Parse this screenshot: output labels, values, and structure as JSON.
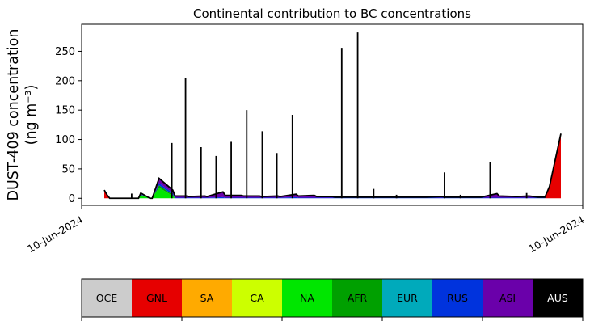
{
  "chart_data": {
    "type": "area",
    "title": "Continental contribution to BC concentrations",
    "ylabel_line1": "DUST-409 concentration",
    "ylabel_line2": "(ng m⁻³)",
    "xlabel": "",
    "ylim": [
      -12,
      296
    ],
    "yticks": [
      0,
      50,
      100,
      150,
      200,
      250
    ],
    "xticks": [
      "10-Jun-2024",
      "10-Jun-2024"
    ],
    "x": [
      0.0,
      0.006,
      0.012,
      0.05,
      0.075,
      0.08,
      0.1,
      0.105,
      0.12,
      0.15,
      0.155,
      0.18,
      0.185,
      0.22,
      0.225,
      0.26,
      0.265,
      0.3,
      0.305,
      0.34,
      0.345,
      0.38,
      0.385,
      0.42,
      0.425,
      0.46,
      0.465,
      0.5,
      0.505,
      0.54,
      0.545,
      0.58,
      0.585,
      0.62,
      0.625,
      0.66,
      0.665,
      0.7,
      0.705,
      0.74,
      0.745,
      0.78,
      0.785,
      0.82,
      0.825,
      0.86,
      0.865,
      0.9,
      0.905,
      0.93,
      0.95,
      0.965,
      0.975,
      1.0
    ],
    "series": [
      {
        "name": "OCE",
        "color": "#cccccc",
        "values": [
          0,
          0,
          0,
          0,
          0,
          0,
          0,
          0,
          0,
          0,
          0,
          0,
          0,
          0,
          0,
          0,
          0,
          0,
          0,
          0,
          0,
          0,
          0,
          0,
          0,
          0,
          0,
          0,
          0,
          0,
          0,
          0,
          0,
          0,
          0,
          0,
          0,
          0,
          0,
          0,
          0,
          0,
          0,
          0,
          0,
          0,
          0,
          0,
          0,
          0,
          0,
          0,
          0,
          0
        ]
      },
      {
        "name": "GNL",
        "color": "#e60000",
        "values": [
          14,
          6,
          0,
          0,
          0,
          0,
          0,
          0,
          0,
          0,
          0,
          0,
          0,
          0,
          0,
          0,
          0,
          0,
          0,
          0,
          0,
          0,
          0,
          0,
          0,
          0,
          0,
          0,
          0,
          0,
          0,
          0,
          0,
          0,
          0,
          0,
          0,
          0,
          0,
          0,
          0,
          0,
          0,
          0,
          0,
          0,
          0,
          0,
          0,
          0,
          0,
          0,
          20,
          110
        ]
      },
      {
        "name": "SA",
        "color": "#ffaa00",
        "values": [
          0,
          0,
          0,
          0,
          0,
          0,
          0,
          0,
          0,
          0,
          0,
          0,
          0,
          0,
          0,
          0,
          0,
          0,
          0,
          0,
          0,
          0,
          0,
          0,
          0,
          0,
          0,
          0,
          0,
          0,
          0,
          0,
          0,
          0,
          0,
          0,
          0,
          0,
          0,
          0,
          0,
          0,
          0,
          0,
          0,
          0,
          0,
          0,
          0,
          0,
          0,
          0,
          0,
          0
        ]
      },
      {
        "name": "CA",
        "color": "#ccff00",
        "values": [
          0,
          0,
          0,
          0,
          0,
          0,
          0,
          0,
          0,
          0,
          0,
          0,
          0,
          0,
          0,
          0,
          0,
          0,
          0,
          0,
          0,
          0,
          0,
          0,
          0,
          0,
          0,
          0,
          0,
          0,
          0,
          0,
          0,
          0,
          0,
          0,
          0,
          0,
          0,
          0,
          0,
          0,
          0,
          0,
          0,
          0,
          0,
          0,
          0,
          0,
          0,
          0,
          0,
          0
        ]
      },
      {
        "name": "NA",
        "color": "#00e600",
        "values": [
          0,
          0,
          0,
          0,
          0,
          5,
          0,
          0,
          18,
          4,
          0,
          0,
          0,
          0,
          0,
          0,
          0,
          0,
          0,
          0,
          0,
          0,
          0,
          0,
          0,
          0,
          0,
          0,
          0,
          0,
          0,
          0,
          0,
          0,
          0,
          0,
          0,
          0,
          0,
          0,
          0,
          0,
          0,
          0,
          0,
          0,
          0,
          0,
          0,
          0,
          0,
          0,
          0,
          0
        ]
      },
      {
        "name": "AFR",
        "color": "#00a000",
        "values": [
          0,
          0,
          0,
          0,
          0,
          1,
          0,
          0,
          4,
          2,
          0,
          0,
          0,
          0,
          0,
          0,
          0,
          0,
          0,
          0,
          0,
          0,
          0,
          0,
          0,
          0,
          0,
          0,
          0,
          0,
          0,
          0,
          0,
          0,
          0,
          0,
          0,
          0,
          0,
          0,
          0,
          0,
          0,
          0,
          0,
          0,
          0,
          0,
          0,
          0,
          0,
          0,
          0,
          0
        ]
      },
      {
        "name": "EUR",
        "color": "#00aabb",
        "values": [
          0,
          0,
          0,
          0,
          0,
          0,
          0,
          0,
          0,
          0,
          0,
          0,
          0,
          0,
          0,
          0,
          0,
          0,
          0,
          0,
          0,
          0,
          0,
          0,
          0,
          0,
          0,
          0,
          0,
          0,
          0,
          0,
          0,
          0,
          0,
          0,
          0,
          0,
          0,
          0,
          0,
          0,
          0,
          0,
          0,
          0,
          0,
          0,
          0,
          0,
          0,
          0,
          0,
          0
        ]
      },
      {
        "name": "RUS",
        "color": "#0033dd",
        "values": [
          0,
          0,
          0,
          0,
          0,
          1,
          0,
          0,
          4,
          3,
          1,
          1,
          1,
          1,
          1,
          2,
          1,
          1,
          1,
          1,
          1,
          1,
          1,
          2,
          1,
          1,
          1,
          1,
          1,
          1,
          1,
          1,
          1,
          1,
          1,
          1,
          1,
          1,
          1,
          1,
          1,
          1,
          1,
          1,
          1,
          1,
          1,
          1,
          1,
          1,
          1,
          1,
          0,
          0
        ]
      },
      {
        "name": "ASI",
        "color": "#6a00aa",
        "values": [
          0,
          0,
          0,
          0,
          0,
          2,
          0,
          0,
          8,
          5,
          3,
          3,
          2,
          3,
          2,
          9,
          4,
          4,
          3,
          3,
          2,
          3,
          2,
          5,
          3,
          4,
          2,
          2,
          1,
          1,
          1,
          1,
          1,
          1,
          1,
          1,
          1,
          1,
          1,
          2,
          1,
          1,
          1,
          1,
          1,
          7,
          3,
          2,
          2,
          3,
          1,
          1,
          0,
          0
        ]
      },
      {
        "name": "AUS",
        "color": "#000000",
        "values": [
          0,
          0,
          0,
          0,
          0,
          0,
          0,
          0,
          0,
          0,
          0,
          0,
          0,
          0,
          0,
          0,
          0,
          0,
          0,
          0,
          0,
          0,
          0,
          0,
          0,
          0,
          0,
          0,
          0,
          0,
          0,
          0,
          0,
          0,
          0,
          0,
          0,
          0,
          0,
          0,
          0,
          0,
          0,
          0,
          0,
          0,
          0,
          0,
          0,
          0,
          0,
          0,
          0,
          0
        ]
      }
    ],
    "spikes": [
      {
        "x": 0.06,
        "value": 8
      },
      {
        "x": 0.148,
        "value": 94
      },
      {
        "x": 0.178,
        "value": 204
      },
      {
        "x": 0.212,
        "value": 87
      },
      {
        "x": 0.245,
        "value": 72
      },
      {
        "x": 0.278,
        "value": 96
      },
      {
        "x": 0.312,
        "value": 150
      },
      {
        "x": 0.346,
        "value": 114
      },
      {
        "x": 0.378,
        "value": 77
      },
      {
        "x": 0.412,
        "value": 142
      },
      {
        "x": 0.52,
        "value": 256
      },
      {
        "x": 0.555,
        "value": 282
      },
      {
        "x": 0.59,
        "value": 16
      },
      {
        "x": 0.64,
        "value": 6
      },
      {
        "x": 0.745,
        "value": 44
      },
      {
        "x": 0.78,
        "value": 6
      },
      {
        "x": 0.845,
        "value": 61
      },
      {
        "x": 0.925,
        "value": 9
      }
    ],
    "legend": {
      "placement": "bottom",
      "entries": [
        {
          "label": "OCE",
          "color": "#cccccc",
          "text_color": "#000000"
        },
        {
          "label": "GNL",
          "color": "#e60000",
          "text_color": "#000000"
        },
        {
          "label": "SA",
          "color": "#ffaa00",
          "text_color": "#000000"
        },
        {
          "label": "CA",
          "color": "#ccff00",
          "text_color": "#000000"
        },
        {
          "label": "NA",
          "color": "#00e600",
          "text_color": "#000000"
        },
        {
          "label": "AFR",
          "color": "#00a000",
          "text_color": "#000000"
        },
        {
          "label": "EUR",
          "color": "#00aabb",
          "text_color": "#000000"
        },
        {
          "label": "RUS",
          "color": "#0033dd",
          "text_color": "#000000"
        },
        {
          "label": "ASI",
          "color": "#6a00aa",
          "text_color": "#000000"
        },
        {
          "label": "AUS",
          "color": "#000000",
          "text_color": "#ffffff"
        }
      ]
    },
    "grid": false
  }
}
